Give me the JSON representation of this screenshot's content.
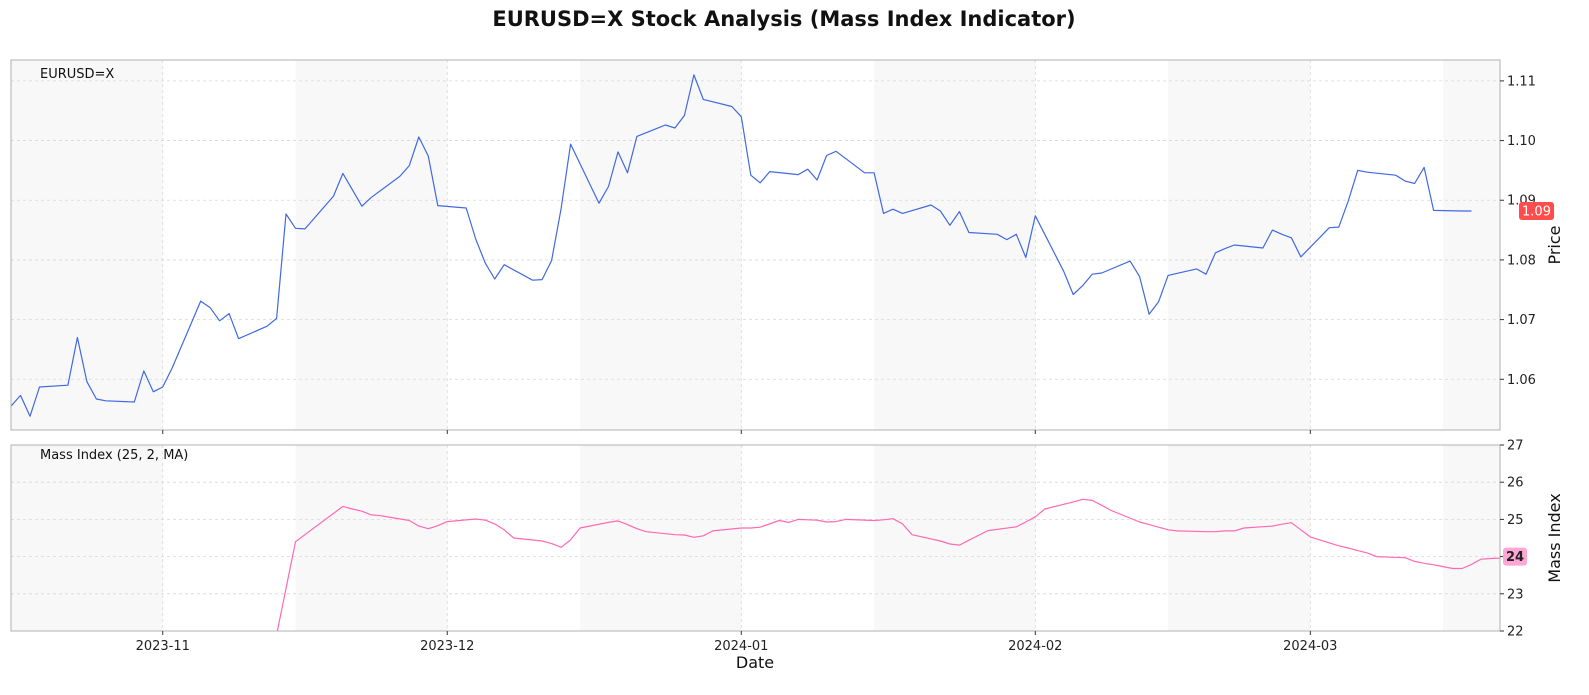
{
  "title": "EURUSD=X Stock Analysis (Mass Index Indicator)",
  "colors": {
    "price_line": "#4169e1",
    "mass_line": "#ff69b4",
    "price_badge": "#ff4d4d",
    "mass_badge": "#ffa6d5",
    "band": "#f8f8f8",
    "grid": "#d8d8d8",
    "frame": "#b0b0b0"
  },
  "chart_data": [
    {
      "type": "line",
      "panel": "price",
      "legend": "EURUSD=X",
      "ylabel": "Price",
      "xlabel": "",
      "ylim": [
        1.0515,
        1.1135
      ],
      "yticks": [
        1.06,
        1.07,
        1.08,
        1.09,
        1.1,
        1.11
      ],
      "ytick_labels": [
        "1.06",
        "1.07",
        "1.08",
        "1.09",
        "1.10",
        "1.11"
      ],
      "last_value_label": "1.09",
      "grid": true,
      "series": [
        {
          "values": [
            [
              "2023-10-16",
              1.0555
            ],
            [
              "2023-10-17",
              1.0573
            ],
            [
              "2023-10-18",
              1.0538
            ],
            [
              "2023-10-19",
              1.0587
            ],
            [
              "2023-10-22",
              1.059
            ],
            [
              "2023-10-23",
              1.067
            ],
            [
              "2023-10-24",
              1.0596
            ],
            [
              "2023-10-25",
              1.0567
            ],
            [
              "2023-10-26",
              1.0564
            ],
            [
              "2023-10-29",
              1.0562
            ],
            [
              "2023-10-30",
              1.0614
            ],
            [
              "2023-10-31",
              1.0579
            ],
            [
              "2023-11-01",
              1.0587
            ],
            [
              "2023-11-02",
              1.0619
            ],
            [
              "2023-11-05",
              1.0731
            ],
            [
              "2023-11-06",
              1.072
            ],
            [
              "2023-11-07",
              1.0698
            ],
            [
              "2023-11-08",
              1.071
            ],
            [
              "2023-11-09",
              1.0668
            ],
            [
              "2023-11-12",
              1.0689
            ],
            [
              "2023-11-13",
              1.0702
            ],
            [
              "2023-11-14",
              1.0877
            ],
            [
              "2023-11-15",
              1.0853
            ],
            [
              "2023-11-16",
              1.0852
            ],
            [
              "2023-11-19",
              1.0907
            ],
            [
              "2023-11-20",
              1.0945
            ],
            [
              "2023-11-22",
              1.089
            ],
            [
              "2023-11-23",
              1.0905
            ],
            [
              "2023-11-26",
              1.094
            ],
            [
              "2023-11-27",
              1.0958
            ],
            [
              "2023-11-28",
              1.1006
            ],
            [
              "2023-11-29",
              1.0974
            ],
            [
              "2023-11-30",
              1.0891
            ],
            [
              "2023-12-03",
              1.0887
            ],
            [
              "2023-12-04",
              1.0835
            ],
            [
              "2023-12-05",
              1.0795
            ],
            [
              "2023-12-06",
              1.0768
            ],
            [
              "2023-12-07",
              1.0792
            ],
            [
              "2023-12-10",
              1.0766
            ],
            [
              "2023-12-11",
              1.0767
            ],
            [
              "2023-12-12",
              1.0799
            ],
            [
              "2023-12-13",
              1.0886
            ],
            [
              "2023-12-14",
              1.0994
            ],
            [
              "2023-12-17",
              1.0895
            ],
            [
              "2023-12-18",
              1.0923
            ],
            [
              "2023-12-19",
              1.0981
            ],
            [
              "2023-12-20",
              1.0946
            ],
            [
              "2023-12-21",
              1.1007
            ],
            [
              "2023-12-24",
              1.1026
            ],
            [
              "2023-12-25",
              1.1021
            ],
            [
              "2023-12-26",
              1.1042
            ],
            [
              "2023-12-27",
              1.111
            ],
            [
              "2023-12-28",
              1.1069
            ],
            [
              "2023-12-31",
              1.1057
            ],
            [
              "2024-01-01",
              1.104
            ],
            [
              "2024-01-02",
              1.0942
            ],
            [
              "2024-01-03",
              1.0929
            ],
            [
              "2024-01-04",
              1.0948
            ],
            [
              "2024-01-07",
              1.0943
            ],
            [
              "2024-01-08",
              1.0952
            ],
            [
              "2024-01-09",
              1.0934
            ],
            [
              "2024-01-10",
              1.0975
            ],
            [
              "2024-01-11",
              1.0982
            ],
            [
              "2024-01-14",
              1.0946
            ],
            [
              "2024-01-15",
              1.0946
            ],
            [
              "2024-01-16",
              1.0878
            ],
            [
              "2024-01-17",
              1.0885
            ],
            [
              "2024-01-18",
              1.0878
            ],
            [
              "2024-01-21",
              1.0892
            ],
            [
              "2024-01-22",
              1.0882
            ],
            [
              "2024-01-23",
              1.0858
            ],
            [
              "2024-01-24",
              1.0881
            ],
            [
              "2024-01-25",
              1.0846
            ],
            [
              "2024-01-28",
              1.0843
            ],
            [
              "2024-01-29",
              1.0834
            ],
            [
              "2024-01-30",
              1.0843
            ],
            [
              "2024-01-31",
              1.0804
            ],
            [
              "2024-02-01",
              1.0874
            ],
            [
              "2024-02-04",
              1.0781
            ],
            [
              "2024-02-05",
              1.0742
            ],
            [
              "2024-02-06",
              1.0757
            ],
            [
              "2024-02-07",
              1.0776
            ],
            [
              "2024-02-08",
              1.0778
            ],
            [
              "2024-02-11",
              1.0798
            ],
            [
              "2024-02-12",
              1.0772
            ],
            [
              "2024-02-13",
              1.0709
            ],
            [
              "2024-02-14",
              1.073
            ],
            [
              "2024-02-15",
              1.0774
            ],
            [
              "2024-02-18",
              1.0785
            ],
            [
              "2024-02-19",
              1.0776
            ],
            [
              "2024-02-20",
              1.0812
            ],
            [
              "2024-02-21",
              1.0819
            ],
            [
              "2024-02-22",
              1.0825
            ],
            [
              "2024-02-25",
              1.082
            ],
            [
              "2024-02-26",
              1.085
            ],
            [
              "2024-02-27",
              1.0843
            ],
            [
              "2024-02-28",
              1.0837
            ],
            [
              "2024-02-29",
              1.0805
            ],
            [
              "2024-03-03",
              1.0854
            ],
            [
              "2024-03-04",
              1.0855
            ],
            [
              "2024-03-05",
              1.0899
            ],
            [
              "2024-03-06",
              1.095
            ],
            [
              "2024-03-07",
              1.0947
            ],
            [
              "2024-03-10",
              1.0942
            ],
            [
              "2024-03-11",
              1.0932
            ],
            [
              "2024-03-12",
              1.0928
            ],
            [
              "2024-03-13",
              1.0955
            ],
            [
              "2024-03-14",
              1.0883
            ],
            [
              "2024-03-17",
              1.0882
            ],
            [
              "2024-03-18",
              1.0882
            ]
          ]
        }
      ]
    },
    {
      "type": "line",
      "panel": "mass_index",
      "legend": "Mass Index (25, 2, MA)",
      "ylabel": "Mass Index",
      "xlabel": "Date",
      "ylim": [
        22,
        27
      ],
      "yticks": [
        22,
        23,
        24,
        25,
        26,
        27
      ],
      "ytick_labels": [
        "22",
        "23",
        "24",
        "25",
        "26",
        "27"
      ],
      "last_value_label": "24",
      "grid": true,
      "series": [
        {
          "values": [
            [
              "2023-11-13",
              21.9
            ],
            [
              "2023-11-15",
              24.4
            ],
            [
              "2023-11-20",
              25.35
            ],
            [
              "2023-11-21",
              25.28
            ],
            [
              "2023-11-22",
              25.22
            ],
            [
              "2023-11-23",
              25.12
            ],
            [
              "2023-11-24",
              25.1
            ],
            [
              "2023-11-27",
              24.97
            ],
            [
              "2023-11-28",
              24.82
            ],
            [
              "2023-11-29",
              24.75
            ],
            [
              "2023-11-30",
              24.83
            ],
            [
              "2023-12-01",
              24.94
            ],
            [
              "2023-12-04",
              25.01
            ],
            [
              "2023-12-05",
              24.98
            ],
            [
              "2023-12-06",
              24.88
            ],
            [
              "2023-12-07",
              24.72
            ],
            [
              "2023-12-08",
              24.5
            ],
            [
              "2023-12-11",
              24.42
            ],
            [
              "2023-12-12",
              24.35
            ],
            [
              "2023-12-13",
              24.25
            ],
            [
              "2023-12-14",
              24.45
            ],
            [
              "2023-12-15",
              24.77
            ],
            [
              "2023-12-18",
              24.92
            ],
            [
              "2023-12-19",
              24.96
            ],
            [
              "2023-12-20",
              24.86
            ],
            [
              "2023-12-21",
              24.75
            ],
            [
              "2023-12-22",
              24.67
            ],
            [
              "2023-12-25",
              24.59
            ],
            [
              "2023-12-26",
              24.58
            ],
            [
              "2023-12-27",
              24.52
            ],
            [
              "2023-12-28",
              24.56
            ],
            [
              "2023-12-29",
              24.69
            ],
            [
              "2024-01-01",
              24.77
            ],
            [
              "2024-01-02",
              24.77
            ],
            [
              "2024-01-03",
              24.79
            ],
            [
              "2024-01-05",
              24.97
            ],
            [
              "2024-01-06",
              24.92
            ],
            [
              "2024-01-07",
              25.0
            ],
            [
              "2024-01-08",
              24.99
            ],
            [
              "2024-01-09",
              24.98
            ],
            [
              "2024-01-10",
              24.93
            ],
            [
              "2024-01-11",
              24.94
            ],
            [
              "2024-01-12",
              25.0
            ],
            [
              "2024-01-15",
              24.97
            ],
            [
              "2024-01-16",
              24.99
            ],
            [
              "2024-01-17",
              25.02
            ],
            [
              "2024-01-18",
              24.88
            ],
            [
              "2024-01-19",
              24.59
            ],
            [
              "2024-01-22",
              24.42
            ],
            [
              "2024-01-23",
              24.34
            ],
            [
              "2024-01-24",
              24.31
            ],
            [
              "2024-01-25",
              24.44
            ],
            [
              "2024-01-26",
              24.57
            ],
            [
              "2024-01-27",
              24.7
            ],
            [
              "2024-01-30",
              24.8
            ],
            [
              "2024-01-31",
              24.93
            ],
            [
              "2024-02-01",
              25.07
            ],
            [
              "2024-02-02",
              25.28
            ],
            [
              "2024-02-05",
              25.47
            ],
            [
              "2024-02-06",
              25.54
            ],
            [
              "2024-02-07",
              25.51
            ],
            [
              "2024-02-08",
              25.38
            ],
            [
              "2024-02-09",
              25.24
            ],
            [
              "2024-02-12",
              24.93
            ],
            [
              "2024-02-13",
              24.86
            ],
            [
              "2024-02-14",
              24.79
            ],
            [
              "2024-02-15",
              24.72
            ],
            [
              "2024-02-16",
              24.69
            ],
            [
              "2024-02-19",
              24.67
            ],
            [
              "2024-02-20",
              24.67
            ],
            [
              "2024-02-21",
              24.69
            ],
            [
              "2024-02-22",
              24.69
            ],
            [
              "2024-02-23",
              24.77
            ],
            [
              "2024-02-26",
              24.82
            ],
            [
              "2024-02-27",
              24.87
            ],
            [
              "2024-02-28",
              24.91
            ],
            [
              "2024-02-29",
              24.72
            ],
            [
              "2024-03-01",
              24.53
            ],
            [
              "2024-03-04",
              24.29
            ],
            [
              "2024-03-05",
              24.23
            ],
            [
              "2024-03-06",
              24.16
            ],
            [
              "2024-03-07",
              24.1
            ],
            [
              "2024-03-08",
              24.0
            ],
            [
              "2024-03-11",
              23.97
            ],
            [
              "2024-03-12",
              23.87
            ],
            [
              "2024-03-13",
              23.82
            ],
            [
              "2024-03-14",
              23.78
            ],
            [
              "2024-03-15",
              23.73
            ],
            [
              "2024-03-16",
              23.68
            ],
            [
              "2024-03-17",
              23.68
            ],
            [
              "2024-03-18",
              23.79
            ],
            [
              "2024-03-19",
              23.93
            ],
            [
              "2024-03-20",
              23.95
            ],
            [
              "2024-03-21",
              23.96
            ],
            [
              "2024-03-22",
              24.0
            ]
          ]
        }
      ]
    }
  ],
  "x_axis": {
    "range": [
      "2023-10-16",
      "2024-03-21"
    ],
    "ticks": [
      "2023-11-01",
      "2023-12-01",
      "2024-01-01",
      "2024-02-01",
      "2024-03-01"
    ],
    "tick_labels": [
      "2023-11",
      "2023-12",
      "2024-01",
      "2024-02",
      "2024-03"
    ],
    "label": "Date",
    "shaded_months": [
      [
        "2023-10-16",
        "2023-11-01"
      ],
      [
        "2023-11-15",
        "2023-12-01"
      ],
      [
        "2023-12-15",
        "2024-01-01"
      ],
      [
        "2024-01-15",
        "2024-02-01"
      ],
      [
        "2024-02-15",
        "2024-03-01"
      ],
      [
        "2024-03-15",
        "2024-03-21"
      ]
    ]
  }
}
